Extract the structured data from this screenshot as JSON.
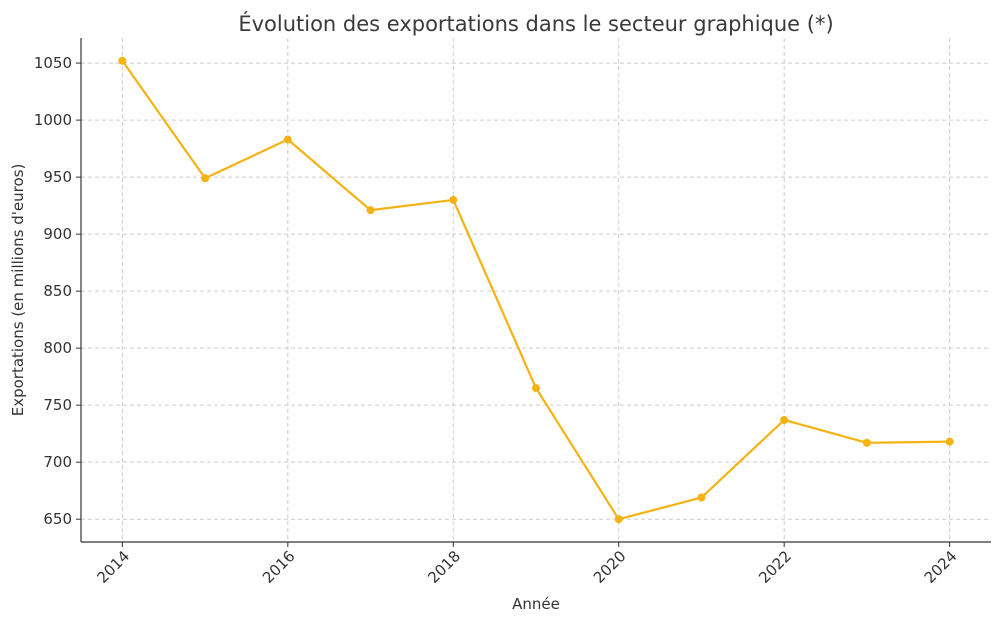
{
  "chart_data": {
    "type": "line",
    "title": "Évolution des exportations dans le secteur graphique (*)",
    "xlabel": "Année",
    "ylabel": "Exportations (en millions d'euros)",
    "x": [
      2014,
      2015,
      2016,
      2017,
      2018,
      2019,
      2020,
      2021,
      2022,
      2023,
      2024
    ],
    "series": [
      {
        "values": [
          1052,
          949,
          983,
          921,
          930,
          765,
          650,
          669,
          737,
          717,
          718
        ],
        "color": "#f5b213"
      }
    ],
    "xlim": [
      2013.5,
      2024.5
    ],
    "ylim": [
      630,
      1072
    ],
    "xticks": [
      2014,
      2016,
      2018,
      2020,
      2022,
      2024
    ],
    "yticks": [
      650,
      700,
      750,
      800,
      850,
      900,
      950,
      1000,
      1050
    ],
    "grid": true,
    "legend": "none"
  }
}
